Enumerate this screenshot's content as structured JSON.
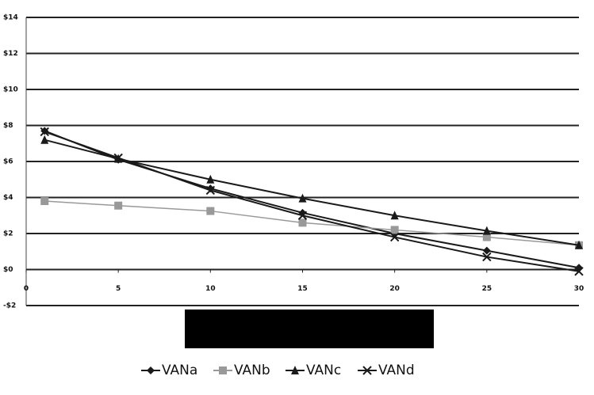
{
  "chart_data": {
    "type": "line",
    "x": [
      1,
      5,
      10,
      15,
      20,
      25,
      30
    ],
    "series": [
      {
        "name": "VANa",
        "color": "#1a1a1a",
        "marker": "diamond",
        "values": [
          7.7,
          6.1,
          4.5,
          3.15,
          2.0,
          1.05,
          0.1
        ]
      },
      {
        "name": "VANb",
        "color": "#999999",
        "marker": "square",
        "values": [
          3.8,
          3.55,
          3.25,
          2.6,
          2.2,
          1.8,
          1.35
        ]
      },
      {
        "name": "VANc",
        "color": "#1a1a1a",
        "marker": "triangle",
        "values": [
          7.2,
          6.15,
          5.0,
          3.95,
          3.0,
          2.15,
          1.35
        ]
      },
      {
        "name": "VANd",
        "color": "#1a1a1a",
        "marker": "x",
        "values": [
          7.65,
          6.2,
          4.4,
          3.0,
          1.8,
          0.7,
          -0.1
        ]
      }
    ],
    "xlim": [
      0,
      30
    ],
    "xticks": [
      0,
      5,
      10,
      15,
      20,
      25,
      30
    ],
    "ylim": [
      -2,
      14
    ],
    "yticks": [
      {
        "value": -2,
        "label": "-$2"
      },
      {
        "value": 0,
        "label": "$0"
      },
      {
        "value": 2,
        "label": "$2"
      },
      {
        "value": 4,
        "label": "$4"
      },
      {
        "value": 6,
        "label": "$6"
      },
      {
        "value": 8,
        "label": "$8"
      },
      {
        "value": 10,
        "label": "$10"
      },
      {
        "value": 12,
        "label": "$12"
      },
      {
        "value": 14,
        "label": "$14"
      }
    ],
    "grid": true,
    "legend": "bottom"
  }
}
